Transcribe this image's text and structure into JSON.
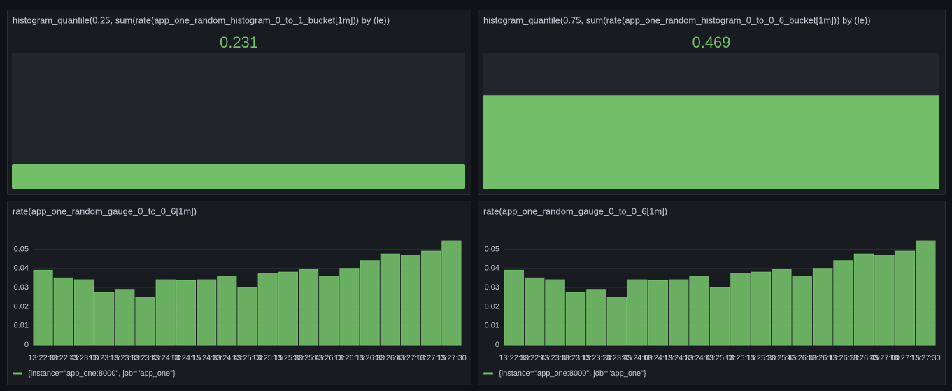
{
  "chart_data": [
    {
      "type": "gauge",
      "title": "histogram_quantile(0.25, sum(rate(app_one_random_histogram_0_to_1_bucket[1m])) by (le))",
      "value": 0.231,
      "color": "#73bf69",
      "ylim": [
        0,
        1.28
      ]
    },
    {
      "type": "gauge",
      "title": "histogram_quantile(0.75, sum(rate(app_one_random_histogram_0_to_0_6_bucket[1m])) by (le))",
      "value": 0.469,
      "color": "#73bf69",
      "ylim": [
        0,
        0.68
      ]
    },
    {
      "type": "bar",
      "title": "rate(app_one_random_gauge_0_to_0_6[1m])",
      "categories": [
        "13:22:30",
        "13:22:45",
        "13:23:00",
        "13:23:15",
        "13:23:30",
        "13:23:45",
        "13:24:00",
        "13:24:15",
        "13:24:30",
        "13:24:45",
        "13:25:00",
        "13:25:15",
        "13:25:30",
        "13:25:45",
        "13:26:00",
        "13:26:15",
        "13:26:30",
        "13:26:45",
        "13:27:00",
        "13:27:15",
        "13:27:30"
      ],
      "series": [
        {
          "name": "{instance=\"app_one:8000\", job=\"app_one\"}",
          "color": "#73bf69",
          "values": [
            0.039,
            0.035,
            0.034,
            0.0275,
            0.029,
            0.025,
            0.034,
            0.0335,
            0.034,
            0.036,
            0.03,
            0.0375,
            0.038,
            0.0395,
            0.036,
            0.04,
            0.044,
            0.0475,
            0.047,
            0.049,
            0.0545
          ]
        }
      ],
      "ylim": [
        0,
        0.056
      ],
      "yticks": [
        0,
        0.01,
        0.02,
        0.03,
        0.04,
        0.05
      ],
      "grid": true,
      "legend": "bottom"
    },
    {
      "type": "bar",
      "title": "rate(app_one_random_gauge_0_to_0_6[1m])",
      "categories": [
        "13:22:30",
        "13:22:45",
        "13:23:00",
        "13:23:15",
        "13:23:30",
        "13:23:45",
        "13:24:00",
        "13:24:15",
        "13:24:30",
        "13:24:45",
        "13:25:00",
        "13:25:15",
        "13:25:30",
        "13:25:45",
        "13:26:00",
        "13:26:15",
        "13:26:30",
        "13:26:45",
        "13:27:00",
        "13:27:15",
        "13:27:30"
      ],
      "series": [
        {
          "name": "{instance=\"app_one:8000\", job=\"app_one\"}",
          "color": "#73bf69",
          "values": [
            0.039,
            0.035,
            0.034,
            0.0275,
            0.029,
            0.025,
            0.034,
            0.0335,
            0.034,
            0.036,
            0.03,
            0.0375,
            0.038,
            0.0395,
            0.036,
            0.04,
            0.044,
            0.0475,
            0.047,
            0.049,
            0.0545
          ]
        }
      ],
      "ylim": [
        0,
        0.056
      ],
      "yticks": [
        0,
        0.01,
        0.02,
        0.03,
        0.04,
        0.05
      ],
      "grid": true,
      "legend": "bottom"
    }
  ]
}
